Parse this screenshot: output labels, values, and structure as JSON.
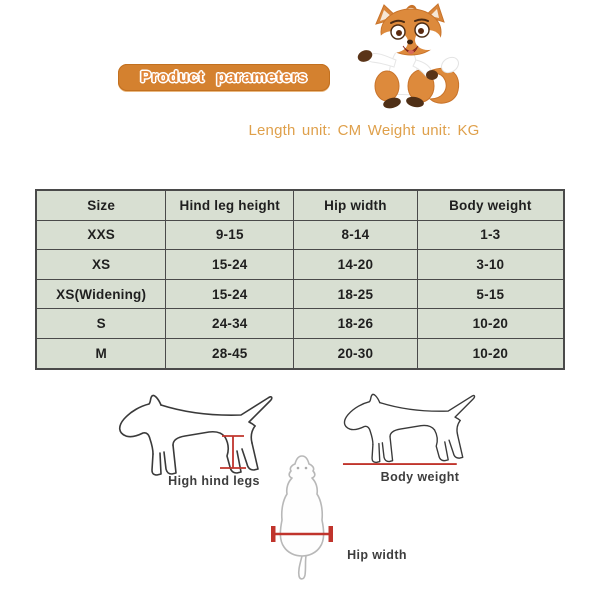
{
  "header": {
    "banner_label": "Product parameters",
    "units_note": "Length unit: CM Weight unit: KG"
  },
  "table": {
    "headers": [
      "Size",
      "Hind leg height",
      "Hip width",
      "Body weight"
    ],
    "rows": [
      [
        "XXS",
        "9-15",
        "8-14",
        "1-3"
      ],
      [
        "XS",
        "15-24",
        "14-20",
        "3-10"
      ],
      [
        "XS(Widening)",
        "15-24",
        "18-25",
        "5-15"
      ],
      [
        "S",
        "24-34",
        "18-26",
        "10-20"
      ],
      [
        "M",
        "28-45",
        "20-30",
        "10-20"
      ]
    ]
  },
  "diagrams": {
    "high_hind_legs_label": "High hind legs",
    "body_weight_label": "Body weight",
    "hip_width_label": "Hip width"
  },
  "icons": {
    "fox_mascot": "fox-mascot",
    "side_dog": "dog-side-view",
    "back_dog": "dog-back-view"
  },
  "colors": {
    "banner_bg": "#d4812f",
    "banner_text": "#e0863a",
    "units_text": "#dfa04b",
    "table_bg": "#d8dfd2",
    "table_border": "#4a4a4a",
    "measure_red": "#c0342c",
    "dog_line": "#3a3a3a",
    "back_dog_line": "#b8b8b8",
    "fox_orange": "#dd8a3c",
    "fox_brown": "#5a3418"
  }
}
